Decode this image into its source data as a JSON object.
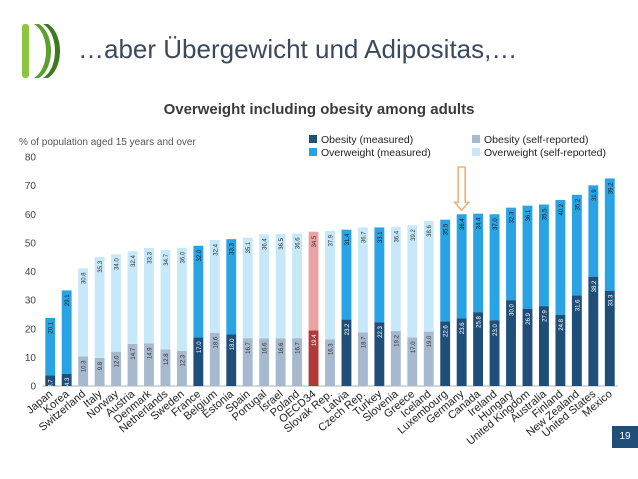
{
  "slide": {
    "title": "…aber Übergewicht und Adipositas,…",
    "page_number": "19"
  },
  "colors": {
    "obesity_measured": "#1f4e79",
    "overweight_measured": "#29a3e3",
    "obesity_self": "#a6b9cf",
    "overweight_self": "#c7e8f9",
    "oecd_obesity": "#b03a3a",
    "oecd_overweight": "#e9a3a3",
    "arrow": "#f0b27a"
  },
  "chart_data": {
    "type": "bar",
    "stacked": true,
    "title": "Overweight including obesity among adults",
    "subtitle": "% of population aged 15 years and over",
    "ylim": [
      0,
      80
    ],
    "yticks": [
      0,
      10,
      20,
      30,
      40,
      50,
      60,
      70,
      80
    ],
    "legend_position": "top-right",
    "legend": [
      {
        "key": "obesity_measured",
        "label": "Obesity (measured)"
      },
      {
        "key": "overweight_measured",
        "label": "Overweight (measured)"
      },
      {
        "key": "obesity_self",
        "label": "Obesity (self-reported)"
      },
      {
        "key": "overweight_self",
        "label": "Overweight (self-reported)"
      }
    ],
    "categories": [
      "Japan",
      "Korea",
      "Switzerland",
      "Italy",
      "Norway",
      "Austria",
      "Denmark",
      "Netherlands",
      "Sweden",
      "France",
      "Belgium",
      "Estonia",
      "Spain",
      "Portugal",
      "Israel",
      "Poland",
      "OECD34",
      "Slovak Rep.",
      "Latvia",
      "Czech Rep.",
      "Turkey",
      "Slovenia",
      "Greece",
      "Iceland",
      "Luxembourg",
      "Germany",
      "Canada",
      "Ireland",
      "Hungary",
      "United Kingdom",
      "Australia",
      "Finland",
      "New Zealand",
      "United States",
      "Mexico"
    ],
    "reporting": [
      "m",
      "m",
      "s",
      "s",
      "s",
      "s",
      "s",
      "s",
      "s",
      "m",
      "s",
      "m",
      "s",
      "s",
      "s",
      "s",
      "o",
      "s",
      "m",
      "s",
      "m",
      "s",
      "s",
      "s",
      "m",
      "m",
      "m",
      "m",
      "m",
      "m",
      "m",
      "m",
      "m",
      "m",
      "m"
    ],
    "obesity": [
      3.7,
      4.3,
      10.3,
      9.8,
      12.0,
      14.7,
      14.9,
      12.8,
      12.3,
      17.0,
      18.6,
      18.0,
      16.7,
      16.6,
      16.6,
      16.7,
      19.4,
      16.3,
      23.2,
      18.7,
      22.3,
      19.2,
      17.0,
      19.0,
      22.6,
      23.6,
      25.8,
      23.0,
      30.0,
      26.9,
      27.9,
      24.8,
      31.6,
      38.2,
      33.3
    ],
    "overweight": [
      20.1,
      29.1,
      30.8,
      35.3,
      34.0,
      32.4,
      33.3,
      34.7,
      36.0,
      32.0,
      32.4,
      33.3,
      35.1,
      36.4,
      36.5,
      36.6,
      34.5,
      37.9,
      31.4,
      36.7,
      33.1,
      36.4,
      39.2,
      38.6,
      35.5,
      36.4,
      34.4,
      37.0,
      32.3,
      36.1,
      35.5,
      40.2,
      35.2,
      31.9,
      39.2
    ],
    "highlight_category": "Germany"
  }
}
